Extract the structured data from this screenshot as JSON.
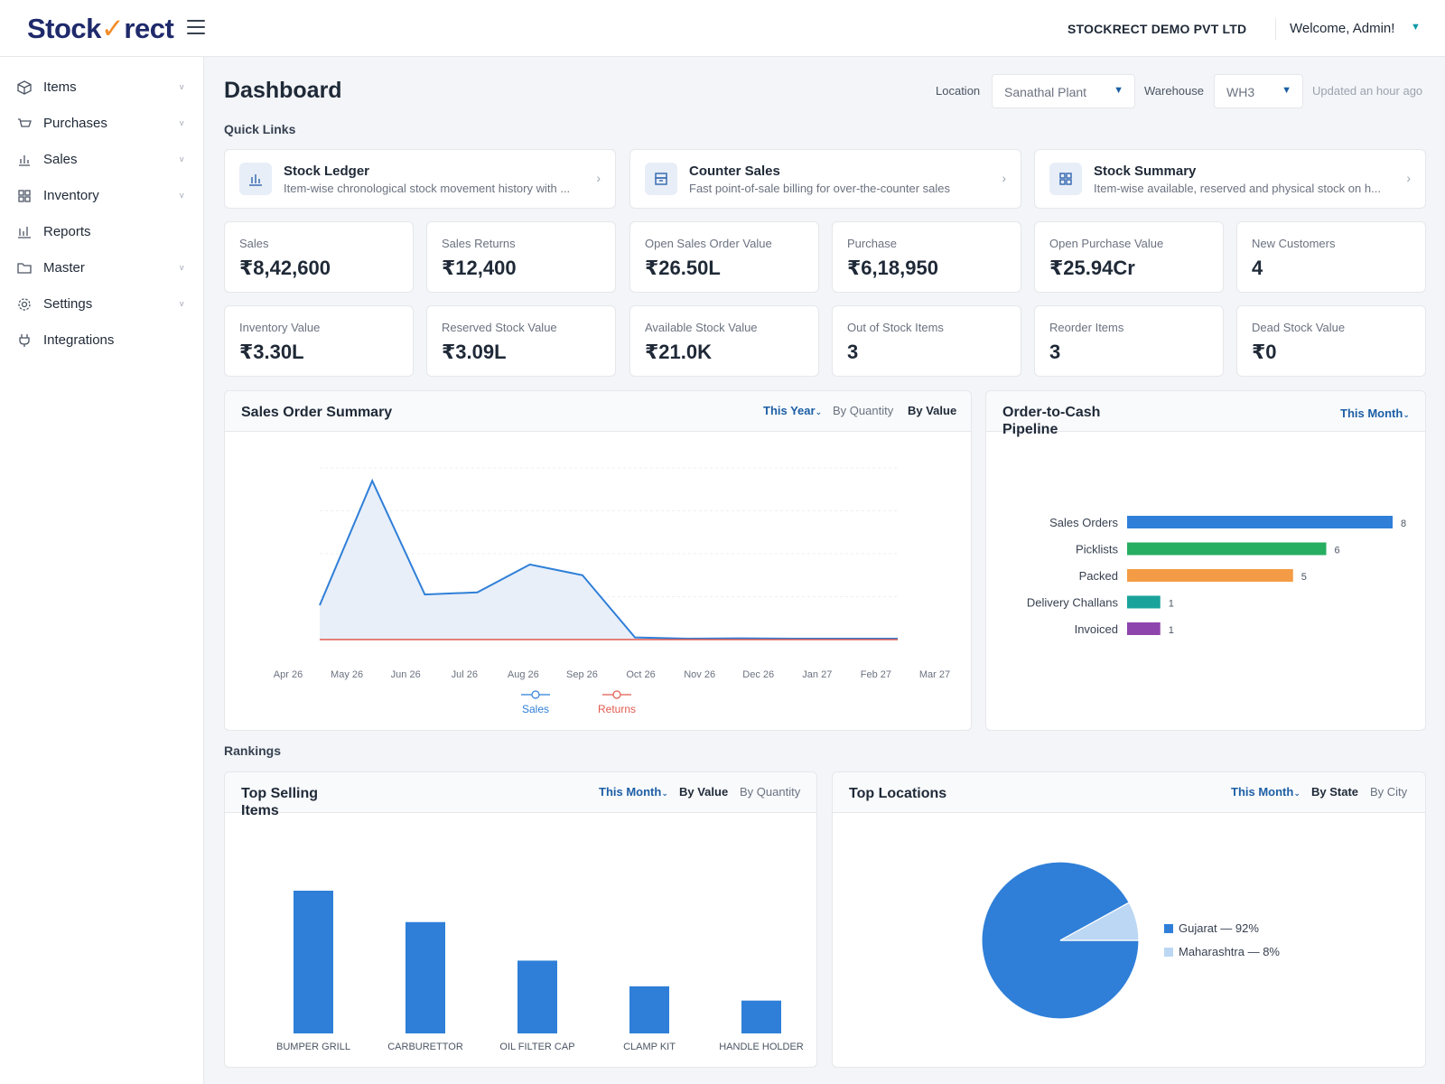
{
  "header": {
    "logo_text_a": "Stock",
    "logo_text_b": "rect",
    "company": "STOCKRECT DEMO PVT LTD",
    "welcome": "Welcome, Admin!"
  },
  "sidebar": {
    "items": [
      {
        "label": "Items",
        "icon": "cube-icon",
        "has_caret": true
      },
      {
        "label": "Purchases",
        "icon": "cart-icon",
        "has_caret": true
      },
      {
        "label": "Sales",
        "icon": "bar-chart-icon",
        "has_caret": true
      },
      {
        "label": "Inventory",
        "icon": "grid-icon",
        "has_caret": true
      },
      {
        "label": "Reports",
        "icon": "reports-icon",
        "has_caret": false
      },
      {
        "label": "Master",
        "icon": "folder-icon",
        "has_caret": true
      },
      {
        "label": "Settings",
        "icon": "gear-icon",
        "has_caret": true
      },
      {
        "label": "Integrations",
        "icon": "plug-icon",
        "has_caret": false
      }
    ]
  },
  "page": {
    "title": "Dashboard",
    "location_label": "Location",
    "location_value": "Sanathal Plant",
    "warehouse_label": "Warehouse",
    "warehouse_value": "WH3",
    "updated": "Updated an hour ago"
  },
  "quick_links": {
    "heading": "Quick Links",
    "items": [
      {
        "title": "Stock Ledger",
        "desc": "Item-wise chronological stock movement history with ...",
        "icon": "ledger-chart-icon"
      },
      {
        "title": "Counter Sales",
        "desc": "Fast point-of-sale billing for over-the-counter sales",
        "icon": "register-icon"
      },
      {
        "title": "Stock Summary",
        "desc": "Item-wise available, reserved and physical stock on h...",
        "icon": "summary-grid-icon"
      }
    ]
  },
  "kpis": [
    {
      "label": "Sales",
      "value": "₹8,42,600"
    },
    {
      "label": "Sales Returns",
      "value": "₹12,400"
    },
    {
      "label": "Open Sales Order Value",
      "value": "₹26.50L"
    },
    {
      "label": "Purchase",
      "value": "₹6,18,950"
    },
    {
      "label": "Open Purchase Value",
      "value": "₹25.94Cr"
    },
    {
      "label": "New Customers",
      "value": "4"
    },
    {
      "label": "Inventory Value",
      "value": "₹3.30L"
    },
    {
      "label": "Reserved Stock Value",
      "value": "₹3.09L"
    },
    {
      "label": "Available Stock Value",
      "value": "₹21.0K"
    },
    {
      "label": "Out of Stock Items",
      "value": "3"
    },
    {
      "label": "Reorder Items",
      "value": "3"
    },
    {
      "label": "Dead Stock Value",
      "value": "₹0"
    }
  ],
  "sales_summary": {
    "title": "Sales Order Summary",
    "period": "This Year",
    "tab_quantity": "By Quantity",
    "tab_value": "By Value"
  },
  "pipeline": {
    "title": "Order-to-Cash Pipeline",
    "period": "This Month"
  },
  "rankings": {
    "heading": "Rankings",
    "top_items": {
      "title": "Top Selling Items",
      "period": "This Month",
      "tab_value": "By Value",
      "tab_quantity": "By Quantity"
    },
    "top_locations": {
      "title": "Top Locations",
      "period": "This Month",
      "tab_state": "By State",
      "tab_city": "By City"
    }
  },
  "chart_data": [
    {
      "type": "area",
      "categories": [
        "Apr 26",
        "May 26",
        "Jun 26",
        "Jul 26",
        "Aug 26",
        "Sep 26",
        "Oct 26",
        "Nov 26",
        "Dec 26",
        "Jan 27",
        "Feb 27",
        "Mar 27"
      ],
      "series": [
        {
          "name": "Sales",
          "color": "#2f7fd8",
          "values": [
            80,
            370,
            105,
            110,
            175,
            150,
            5,
            2,
            3,
            2,
            2,
            2
          ]
        },
        {
          "name": "Returns",
          "color": "#e05a4f",
          "values": [
            0,
            0,
            0,
            0,
            0,
            0,
            0,
            0,
            0,
            0,
            0,
            0
          ]
        }
      ],
      "ylim": [
        0,
        400
      ],
      "grid": true,
      "legend": "bottom"
    },
    {
      "type": "bar",
      "orientation": "horizontal",
      "categories": [
        "Sales Orders",
        "Picklists",
        "Packed",
        "Delivery Challans",
        "Invoiced"
      ],
      "values": [
        8,
        6,
        5,
        1,
        1
      ],
      "colors": [
        "#2f7fd8",
        "#27ae60",
        "#f39c45",
        "#1aa39a",
        "#8e44ad"
      ],
      "xlim": [
        0,
        8
      ]
    },
    {
      "type": "bar",
      "categories": [
        "BUMPER GRILL",
        "CARBURETTOR",
        "OIL FILTER CAP",
        "CLAMP KIT",
        "HANDLE HOLDER"
      ],
      "values": [
        100,
        78,
        51,
        33,
        23
      ],
      "color": "#2f7fd8",
      "ylim": [
        0,
        100
      ]
    },
    {
      "type": "pie",
      "labels": [
        "Gujarat — 92%",
        "Maharashtra — 8%"
      ],
      "values": [
        92,
        8
      ],
      "colors": [
        "#2f7fd8",
        "#bcd7f3"
      ],
      "legend": "right"
    }
  ]
}
